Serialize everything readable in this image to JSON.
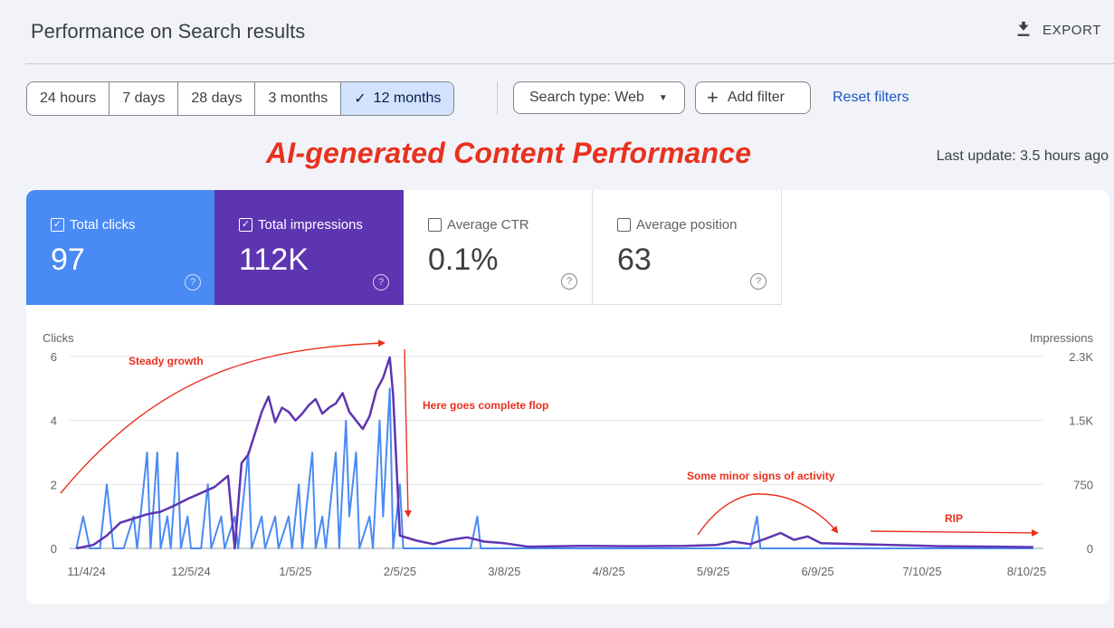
{
  "header": {
    "title": "Performance on Search results",
    "export_label": "EXPORT"
  },
  "filters": {
    "ranges": [
      {
        "label": "24 hours",
        "active": false
      },
      {
        "label": "7 days",
        "active": false
      },
      {
        "label": "28 days",
        "active": false
      },
      {
        "label": "3 months",
        "active": false
      },
      {
        "label": "12 months",
        "active": true
      }
    ],
    "search_type_label": "Search type: Web",
    "add_filter_label": "Add filter",
    "reset_label": "Reset filters"
  },
  "overlay_title": "AI-generated Content Performance",
  "last_update": "Last update: 3.5 hours ago",
  "metrics": {
    "clicks": {
      "label": "Total clicks",
      "value": "97",
      "checked": true
    },
    "impressions": {
      "label": "Total impressions",
      "value": "112K",
      "checked": true
    },
    "ctr": {
      "label": "Average CTR",
      "value": "0.1%",
      "checked": false
    },
    "position": {
      "label": "Average position",
      "value": "63",
      "checked": false
    }
  },
  "colors": {
    "clicks": "#4a8af4",
    "impressions": "#5e35b1",
    "annotation": "#e8311e"
  },
  "chart_data": {
    "type": "line",
    "x_tick_labels": [
      "11/4/24",
      "12/5/24",
      "1/5/25",
      "2/5/25",
      "3/8/25",
      "4/8/25",
      "5/9/25",
      "6/9/25",
      "7/10/25",
      "8/10/25"
    ],
    "x_range": [
      "2024-10-30",
      "2025-08-15"
    ],
    "y_left": {
      "label": "Clicks",
      "ticks": [
        "0",
        "2",
        "4",
        "6"
      ],
      "range": [
        0,
        6
      ]
    },
    "y_right": {
      "label": "Impressions",
      "ticks": [
        "0",
        "750",
        "1.5K",
        "2.3K"
      ],
      "range": [
        0,
        2250
      ]
    },
    "grid": true,
    "series": [
      {
        "name": "Total clicks",
        "axis": "left",
        "points": [
          [
            "2024-11-01",
            0
          ],
          [
            "2024-11-03",
            1
          ],
          [
            "2024-11-05",
            0
          ],
          [
            "2024-11-08",
            0
          ],
          [
            "2024-11-10",
            2
          ],
          [
            "2024-11-12",
            0
          ],
          [
            "2024-11-15",
            0
          ],
          [
            "2024-11-18",
            1
          ],
          [
            "2024-11-19",
            0
          ],
          [
            "2024-11-22",
            3
          ],
          [
            "2024-11-23",
            0
          ],
          [
            "2024-11-25",
            3
          ],
          [
            "2024-11-26",
            0
          ],
          [
            "2024-11-28",
            1
          ],
          [
            "2024-11-29",
            0
          ],
          [
            "2024-12-01",
            3
          ],
          [
            "2024-12-02",
            0
          ],
          [
            "2024-12-04",
            1
          ],
          [
            "2024-12-05",
            0
          ],
          [
            "2024-12-08",
            0
          ],
          [
            "2024-12-10",
            2
          ],
          [
            "2024-12-11",
            0
          ],
          [
            "2024-12-14",
            1
          ],
          [
            "2024-12-15",
            0
          ],
          [
            "2024-12-18",
            1
          ],
          [
            "2024-12-19",
            0
          ],
          [
            "2024-12-22",
            3
          ],
          [
            "2024-12-23",
            0
          ],
          [
            "2024-12-26",
            1
          ],
          [
            "2024-12-27",
            0
          ],
          [
            "2024-12-30",
            1
          ],
          [
            "2024-12-31",
            0
          ],
          [
            "2025-01-03",
            1
          ],
          [
            "2025-01-04",
            0
          ],
          [
            "2025-01-06",
            2
          ],
          [
            "2025-01-07",
            0
          ],
          [
            "2025-01-10",
            3
          ],
          [
            "2025-01-11",
            0
          ],
          [
            "2025-01-13",
            1
          ],
          [
            "2025-01-14",
            0
          ],
          [
            "2025-01-17",
            3
          ],
          [
            "2025-01-18",
            0
          ],
          [
            "2025-01-20",
            4
          ],
          [
            "2025-01-21",
            1
          ],
          [
            "2025-01-23",
            3
          ],
          [
            "2025-01-24",
            0
          ],
          [
            "2025-01-27",
            1
          ],
          [
            "2025-01-28",
            0
          ],
          [
            "2025-01-30",
            4
          ],
          [
            "2025-01-31",
            1
          ],
          [
            "2025-02-02",
            5
          ],
          [
            "2025-02-03",
            0
          ],
          [
            "2025-02-05",
            2
          ],
          [
            "2025-02-06",
            0
          ],
          [
            "2025-02-26",
            0
          ],
          [
            "2025-02-28",
            1
          ],
          [
            "2025-03-01",
            0
          ],
          [
            "2025-05-20",
            0
          ],
          [
            "2025-05-22",
            1
          ],
          [
            "2025-05-23",
            0
          ],
          [
            "2025-08-12",
            0
          ]
        ]
      },
      {
        "name": "Total impressions",
        "axis": "right",
        "points": [
          [
            "2024-11-01",
            0
          ],
          [
            "2024-11-06",
            40
          ],
          [
            "2024-11-10",
            150
          ],
          [
            "2024-11-14",
            300
          ],
          [
            "2024-11-18",
            350
          ],
          [
            "2024-11-22",
            400
          ],
          [
            "2024-11-26",
            430
          ],
          [
            "2024-11-30",
            500
          ],
          [
            "2024-12-04",
            580
          ],
          [
            "2024-12-08",
            650
          ],
          [
            "2024-12-12",
            720
          ],
          [
            "2024-12-16",
            850
          ],
          [
            "2024-12-18,0",
            0
          ],
          [
            "2024-12-20",
            1000
          ],
          [
            "2024-12-22",
            1100
          ],
          [
            "2024-12-24",
            1350
          ],
          [
            "2024-12-26",
            1600
          ],
          [
            "2024-12-28",
            1780
          ],
          [
            "2024-12-30",
            1480
          ],
          [
            "2025-01-01",
            1650
          ],
          [
            "2025-01-03",
            1600
          ],
          [
            "2025-01-05",
            1500
          ],
          [
            "2025-01-07",
            1580
          ],
          [
            "2025-01-09",
            1680
          ],
          [
            "2025-01-11",
            1750
          ],
          [
            "2025-01-13",
            1580
          ],
          [
            "2025-01-15",
            1650
          ],
          [
            "2025-01-17",
            1700
          ],
          [
            "2025-01-19",
            1820
          ],
          [
            "2025-01-21",
            1600
          ],
          [
            "2025-01-23",
            1500
          ],
          [
            "2025-01-25",
            1400
          ],
          [
            "2025-01-27",
            1550
          ],
          [
            "2025-01-29",
            1850
          ],
          [
            "2025-01-31",
            2000
          ],
          [
            "2025-02-02",
            2240
          ],
          [
            "2025-02-03",
            1800
          ],
          [
            "2025-02-05",
            150
          ],
          [
            "2025-02-10",
            90
          ],
          [
            "2025-02-15",
            50
          ],
          [
            "2025-02-20",
            100
          ],
          [
            "2025-02-25",
            130
          ],
          [
            "2025-03-02",
            80
          ],
          [
            "2025-03-08",
            60
          ],
          [
            "2025-03-15",
            20
          ],
          [
            "2025-04-01",
            30
          ],
          [
            "2025-04-15",
            25
          ],
          [
            "2025-05-01",
            30
          ],
          [
            "2025-05-10",
            40
          ],
          [
            "2025-05-15",
            80
          ],
          [
            "2025-05-20",
            50
          ],
          [
            "2025-05-25",
            120
          ],
          [
            "2025-05-29",
            180
          ],
          [
            "2025-06-02",
            100
          ],
          [
            "2025-06-06",
            140
          ],
          [
            "2025-06-10",
            60
          ],
          [
            "2025-06-20",
            50
          ],
          [
            "2025-07-01",
            40
          ],
          [
            "2025-07-15",
            25
          ],
          [
            "2025-08-01",
            20
          ],
          [
            "2025-08-12",
            15
          ]
        ]
      }
    ],
    "annotations": [
      {
        "text": "Steady growth"
      },
      {
        "text": "Here goes complete flop"
      },
      {
        "text": "Some minor signs of activity"
      },
      {
        "text": "RIP"
      }
    ]
  }
}
